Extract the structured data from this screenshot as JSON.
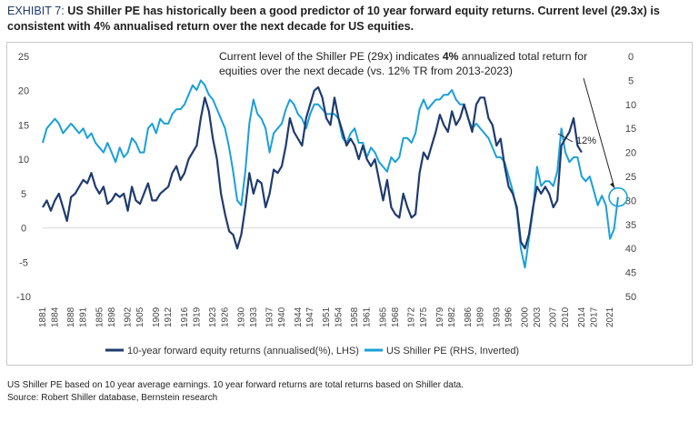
{
  "title": {
    "label": "EXHIBIT 7:",
    "text": "US Shiller PE has historically been a good predictor of 10 year forward equity returns. Current level (29.3x) is consistent with 4% annualised return over the next decade for US equities."
  },
  "annotation": {
    "pre": "Current level of the Shiller PE (29x) indicates ",
    "bold": "4%",
    "post": " annualized total return for equities over the next decade (vs. 12% TR from 2013-2023)"
  },
  "callout_label": "12%",
  "notes": {
    "line1": "US Shiller PE based on 10 year average earnings. 10 year forward returns are total returns based on Shiller data.",
    "line2": "Source: Robert Shiller database, Bernstein research"
  },
  "colors": {
    "lhs": "#1f3b6f",
    "rhs": "#1aa0d8",
    "axis": "#444444"
  },
  "chart_data": {
    "type": "line",
    "x_ticks": [
      "1881",
      "1884",
      "1888",
      "1891",
      "1895",
      "1898",
      "1902",
      "1905",
      "1909",
      "1912",
      "1916",
      "1919",
      "1923",
      "1926",
      "1930",
      "1933",
      "1937",
      "1940",
      "1944",
      "1947",
      "1951",
      "1954",
      "1958",
      "1961",
      "1965",
      "1968",
      "1972",
      "1975",
      "1979",
      "1982",
      "1986",
      "1989",
      "1993",
      "1996",
      "2000",
      "2003",
      "2007",
      "2010",
      "2014",
      "2017",
      "2021"
    ],
    "xlim": [
      1881,
      2023
    ],
    "left_axis": {
      "ticks": [
        25,
        20,
        15,
        10,
        5,
        0,
        -5,
        -10
      ],
      "ylim": [
        -10,
        25
      ]
    },
    "right_axis": {
      "ticks": [
        0,
        5,
        10,
        15,
        20,
        25,
        30,
        35,
        40,
        45,
        50
      ],
      "ylim": [
        0,
        50
      ],
      "inverted": true
    },
    "series": [
      {
        "name": "10-year forward equity returns (annualised(%), LHS)",
        "axis": "left",
        "points": [
          [
            1881,
            3
          ],
          [
            1882,
            4
          ],
          [
            1883,
            2.5
          ],
          [
            1884,
            4
          ],
          [
            1885,
            5
          ],
          [
            1886,
            3
          ],
          [
            1887,
            1
          ],
          [
            1888,
            4.5
          ],
          [
            1889,
            5
          ],
          [
            1890,
            6
          ],
          [
            1891,
            7
          ],
          [
            1892,
            6.5
          ],
          [
            1893,
            8
          ],
          [
            1894,
            6
          ],
          [
            1895,
            5
          ],
          [
            1896,
            6
          ],
          [
            1897,
            3.5
          ],
          [
            1898,
            4
          ],
          [
            1899,
            5
          ],
          [
            1900,
            4.5
          ],
          [
            1901,
            5
          ],
          [
            1902,
            2.5
          ],
          [
            1903,
            6
          ],
          [
            1904,
            4
          ],
          [
            1905,
            3.5
          ],
          [
            1906,
            5
          ],
          [
            1907,
            6.5
          ],
          [
            1908,
            4
          ],
          [
            1909,
            4
          ],
          [
            1910,
            5
          ],
          [
            1911,
            5.5
          ],
          [
            1912,
            6
          ],
          [
            1913,
            8
          ],
          [
            1914,
            9
          ],
          [
            1915,
            7
          ],
          [
            1916,
            8
          ],
          [
            1917,
            10
          ],
          [
            1918,
            11
          ],
          [
            1919,
            12
          ],
          [
            1920,
            16
          ],
          [
            1921,
            19
          ],
          [
            1922,
            17
          ],
          [
            1923,
            13
          ],
          [
            1924,
            10
          ],
          [
            1925,
            5
          ],
          [
            1926,
            2
          ],
          [
            1927,
            -0.5
          ],
          [
            1928,
            -1
          ],
          [
            1929,
            -3
          ],
          [
            1930,
            -1
          ],
          [
            1931,
            3
          ],
          [
            1932,
            8
          ],
          [
            1933,
            5
          ],
          [
            1934,
            7
          ],
          [
            1935,
            6.5
          ],
          [
            1936,
            3
          ],
          [
            1937,
            5
          ],
          [
            1938,
            8.5
          ],
          [
            1939,
            8
          ],
          [
            1940,
            9
          ],
          [
            1941,
            12
          ],
          [
            1942,
            16
          ],
          [
            1943,
            14
          ],
          [
            1944,
            13
          ],
          [
            1945,
            12
          ],
          [
            1946,
            16
          ],
          [
            1947,
            18
          ],
          [
            1948,
            20
          ],
          [
            1949,
            20.5
          ],
          [
            1950,
            19
          ],
          [
            1951,
            16
          ],
          [
            1952,
            15
          ],
          [
            1953,
            19
          ],
          [
            1954,
            16
          ],
          [
            1955,
            14
          ],
          [
            1956,
            12
          ],
          [
            1957,
            13
          ],
          [
            1958,
            12
          ],
          [
            1959,
            10
          ],
          [
            1960,
            12
          ],
          [
            1961,
            10
          ],
          [
            1962,
            9
          ],
          [
            1963,
            10
          ],
          [
            1964,
            7
          ],
          [
            1965,
            4
          ],
          [
            1966,
            7
          ],
          [
            1967,
            3
          ],
          [
            1968,
            2
          ],
          [
            1969,
            1.5
          ],
          [
            1970,
            5
          ],
          [
            1971,
            3
          ],
          [
            1972,
            1.5
          ],
          [
            1973,
            2
          ],
          [
            1974,
            8
          ],
          [
            1975,
            11
          ],
          [
            1976,
            10
          ],
          [
            1977,
            12
          ],
          [
            1978,
            14
          ],
          [
            1979,
            16.5
          ],
          [
            1980,
            15
          ],
          [
            1981,
            14
          ],
          [
            1982,
            17
          ],
          [
            1983,
            15
          ],
          [
            1984,
            16
          ],
          [
            1985,
            18
          ],
          [
            1986,
            16
          ],
          [
            1987,
            14
          ],
          [
            1988,
            18
          ],
          [
            1989,
            19
          ],
          [
            1990,
            19
          ],
          [
            1991,
            16
          ],
          [
            1992,
            15
          ],
          [
            1993,
            12
          ],
          [
            1994,
            13
          ],
          [
            1995,
            9
          ],
          [
            1996,
            6
          ],
          [
            1997,
            5
          ],
          [
            1998,
            3
          ],
          [
            1999,
            -2
          ],
          [
            2000,
            -3
          ],
          [
            2001,
            -1
          ],
          [
            2002,
            3
          ],
          [
            2003,
            6
          ],
          [
            2004,
            5
          ],
          [
            2005,
            6
          ],
          [
            2006,
            5
          ],
          [
            2007,
            3
          ],
          [
            2008,
            4
          ],
          [
            2009,
            12
          ],
          [
            2010,
            13
          ],
          [
            2011,
            14
          ],
          [
            2012,
            16
          ],
          [
            2013,
            12
          ],
          [
            2014,
            11
          ]
        ]
      },
      {
        "name": "US Shiller PE (RHS, Inverted)",
        "axis": "right",
        "points": [
          [
            1881,
            18
          ],
          [
            1882,
            15
          ],
          [
            1883,
            14
          ],
          [
            1884,
            13
          ],
          [
            1885,
            14
          ],
          [
            1886,
            16
          ],
          [
            1887,
            15
          ],
          [
            1888,
            14
          ],
          [
            1889,
            15
          ],
          [
            1890,
            16
          ],
          [
            1891,
            15
          ],
          [
            1892,
            17
          ],
          [
            1893,
            16
          ],
          [
            1894,
            18
          ],
          [
            1895,
            19
          ],
          [
            1896,
            20
          ],
          [
            1897,
            18
          ],
          [
            1898,
            20
          ],
          [
            1899,
            22
          ],
          [
            1900,
            19
          ],
          [
            1901,
            21
          ],
          [
            1902,
            20
          ],
          [
            1903,
            17
          ],
          [
            1904,
            18
          ],
          [
            1905,
            20
          ],
          [
            1906,
            20
          ],
          [
            1907,
            15
          ],
          [
            1908,
            14
          ],
          [
            1909,
            16
          ],
          [
            1910,
            13
          ],
          [
            1911,
            14
          ],
          [
            1912,
            14
          ],
          [
            1913,
            12
          ],
          [
            1914,
            11
          ],
          [
            1915,
            11
          ],
          [
            1916,
            10
          ],
          [
            1917,
            8
          ],
          [
            1918,
            6
          ],
          [
            1919,
            7
          ],
          [
            1920,
            5
          ],
          [
            1921,
            6
          ],
          [
            1922,
            8
          ],
          [
            1923,
            9
          ],
          [
            1924,
            11
          ],
          [
            1925,
            13
          ],
          [
            1926,
            15
          ],
          [
            1927,
            19
          ],
          [
            1928,
            24
          ],
          [
            1929,
            30
          ],
          [
            1930,
            31
          ],
          [
            1931,
            24
          ],
          [
            1932,
            14
          ],
          [
            1933,
            9
          ],
          [
            1934,
            12
          ],
          [
            1935,
            13
          ],
          [
            1936,
            15
          ],
          [
            1937,
            20
          ],
          [
            1938,
            16
          ],
          [
            1939,
            15
          ],
          [
            1940,
            14
          ],
          [
            1941,
            11
          ],
          [
            1942,
            9
          ],
          [
            1943,
            10
          ],
          [
            1944,
            12
          ],
          [
            1945,
            13
          ],
          [
            1946,
            15
          ],
          [
            1947,
            12
          ],
          [
            1948,
            10
          ],
          [
            1949,
            10
          ],
          [
            1950,
            11
          ],
          [
            1951,
            12
          ],
          [
            1952,
            12
          ],
          [
            1953,
            12
          ],
          [
            1954,
            13
          ],
          [
            1955,
            17
          ],
          [
            1956,
            18
          ],
          [
            1957,
            16
          ],
          [
            1958,
            15
          ],
          [
            1959,
            18
          ],
          [
            1960,
            18
          ],
          [
            1961,
            21
          ],
          [
            1962,
            19
          ],
          [
            1963,
            20
          ],
          [
            1964,
            22
          ],
          [
            1965,
            23
          ],
          [
            1966,
            24
          ],
          [
            1967,
            21
          ],
          [
            1968,
            22
          ],
          [
            1969,
            21
          ],
          [
            1970,
            17
          ],
          [
            1971,
            17
          ],
          [
            1972,
            18
          ],
          [
            1973,
            16
          ],
          [
            1974,
            11
          ],
          [
            1975,
            9
          ],
          [
            1976,
            11
          ],
          [
            1977,
            10
          ],
          [
            1978,
            9
          ],
          [
            1979,
            9
          ],
          [
            1980,
            8
          ],
          [
            1981,
            8
          ],
          [
            1982,
            7
          ],
          [
            1983,
            9
          ],
          [
            1984,
            10
          ],
          [
            1985,
            10
          ],
          [
            1986,
            13
          ],
          [
            1987,
            15
          ],
          [
            1988,
            14
          ],
          [
            1989,
            15
          ],
          [
            1990,
            16
          ],
          [
            1991,
            17
          ],
          [
            1992,
            19
          ],
          [
            1993,
            21
          ],
          [
            1994,
            21
          ],
          [
            1995,
            22
          ],
          [
            1996,
            25
          ],
          [
            1997,
            28
          ],
          [
            1998,
            32
          ],
          [
            1999,
            40
          ],
          [
            2000,
            44
          ],
          [
            2001,
            38
          ],
          [
            2002,
            32
          ],
          [
            2003,
            23
          ],
          [
            2004,
            27
          ],
          [
            2005,
            26
          ],
          [
            2006,
            26
          ],
          [
            2007,
            27
          ],
          [
            2008,
            24
          ],
          [
            2009,
            15
          ],
          [
            2010,
            20
          ],
          [
            2011,
            22
          ],
          [
            2012,
            21
          ],
          [
            2013,
            21
          ],
          [
            2014,
            25
          ],
          [
            2015,
            26
          ],
          [
            2016,
            25
          ],
          [
            2017,
            28
          ],
          [
            2018,
            31
          ],
          [
            2019,
            29
          ],
          [
            2020,
            31
          ],
          [
            2021,
            38
          ],
          [
            2022,
            36
          ],
          [
            2023,
            29.3
          ]
        ]
      }
    ],
    "annotation": "Current level of the Shiller PE (29x) indicates 4% annualized total return for equities over the next decade (vs. 12% TR from 2013-2023)"
  }
}
